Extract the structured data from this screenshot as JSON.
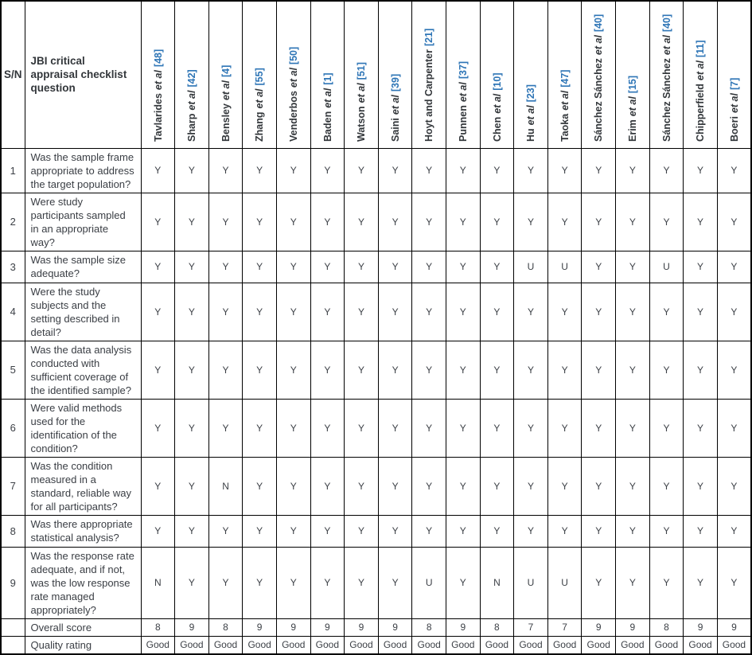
{
  "table": {
    "corner": {
      "sn_label": "S/N",
      "question_label": "JBI critical appraisal checklist question"
    },
    "colors": {
      "citation_blue": "#2e75b6",
      "border_black": "#000000",
      "text_dark": "#33373b"
    },
    "studies": [
      {
        "name": "Tavlarides",
        "etal": "et al",
        "cite": "[48]"
      },
      {
        "name": "Sharp",
        "etal": "et al",
        "cite": "[42]"
      },
      {
        "name": "Bensley",
        "etal": "et al",
        "cite": "[4]"
      },
      {
        "name": "Zhang",
        "etal": "et al",
        "cite": "[55]"
      },
      {
        "name": "Venderbos",
        "etal": "et al",
        "cite": "[50]"
      },
      {
        "name": "Baden",
        "etal": "et al",
        "cite": "[1]"
      },
      {
        "name": "Watson",
        "etal": "et al",
        "cite": "[51]"
      },
      {
        "name": "Saini",
        "etal": "et al",
        "cite": "[39]"
      },
      {
        "name": "Hoyt and Carpenter",
        "etal": "",
        "cite": "[21]"
      },
      {
        "name": "Punnen",
        "etal": "et al",
        "cite": "[37]"
      },
      {
        "name": "Chen",
        "etal": "et al",
        "cite": "[10]"
      },
      {
        "name": "Hu",
        "etal": "et al",
        "cite": "[23]"
      },
      {
        "name": "Taoka",
        "etal": "et al",
        "cite": "[47]"
      },
      {
        "name": "Sánchez Sánchez",
        "etal": "et al",
        "cite": "[40]"
      },
      {
        "name": "Erim",
        "etal": "et al",
        "cite": "[15]"
      },
      {
        "name": "Sánchez Sánchez",
        "etal": "et al",
        "cite": "[40]"
      },
      {
        "name": "Chipperfield",
        "etal": "et al",
        "cite": "[11]"
      },
      {
        "name": "Boeri",
        "etal": "et al",
        "cite": "[7]"
      }
    ],
    "rows": [
      {
        "sn": "1",
        "question": "Was the sample frame appropriate to address the target population?",
        "values": [
          "Y",
          "Y",
          "Y",
          "Y",
          "Y",
          "Y",
          "Y",
          "Y",
          "Y",
          "Y",
          "Y",
          "Y",
          "Y",
          "Y",
          "Y",
          "Y",
          "Y",
          "Y"
        ]
      },
      {
        "sn": "2",
        "question": "Were study participants sampled in an appropriate way?",
        "values": [
          "Y",
          "Y",
          "Y",
          "Y",
          "Y",
          "Y",
          "Y",
          "Y",
          "Y",
          "Y",
          "Y",
          "Y",
          "Y",
          "Y",
          "Y",
          "Y",
          "Y",
          "Y"
        ]
      },
      {
        "sn": "3",
        "question": "Was the sample size adequate?",
        "values": [
          "Y",
          "Y",
          "Y",
          "Y",
          "Y",
          "Y",
          "Y",
          "Y",
          "Y",
          "Y",
          "Y",
          "U",
          "U",
          "Y",
          "Y",
          "U",
          "Y",
          "Y"
        ]
      },
      {
        "sn": "4",
        "question": "Were the study subjects and the setting described in detail?",
        "values": [
          "Y",
          "Y",
          "Y",
          "Y",
          "Y",
          "Y",
          "Y",
          "Y",
          "Y",
          "Y",
          "Y",
          "Y",
          "Y",
          "Y",
          "Y",
          "Y",
          "Y",
          "Y"
        ]
      },
      {
        "sn": "5",
        "question": "Was the data analysis conducted with sufficient coverage of the identified sample?",
        "values": [
          "Y",
          "Y",
          "Y",
          "Y",
          "Y",
          "Y",
          "Y",
          "Y",
          "Y",
          "Y",
          "Y",
          "Y",
          "Y",
          "Y",
          "Y",
          "Y",
          "Y",
          "Y"
        ]
      },
      {
        "sn": "6",
        "question": "Were valid methods used for the identification of the condition?",
        "values": [
          "Y",
          "Y",
          "Y",
          "Y",
          "Y",
          "Y",
          "Y",
          "Y",
          "Y",
          "Y",
          "Y",
          "Y",
          "Y",
          "Y",
          "Y",
          "Y",
          "Y",
          "Y"
        ]
      },
      {
        "sn": "7",
        "question": "Was the condition measured in a standard, reliable way for all participants?",
        "values": [
          "Y",
          "Y",
          "N",
          "Y",
          "Y",
          "Y",
          "Y",
          "Y",
          "Y",
          "Y",
          "Y",
          "Y",
          "Y",
          "Y",
          "Y",
          "Y",
          "Y",
          "Y"
        ]
      },
      {
        "sn": "8",
        "question": "Was there appropriate statistical analysis?",
        "values": [
          "Y",
          "Y",
          "Y",
          "Y",
          "Y",
          "Y",
          "Y",
          "Y",
          "Y",
          "Y",
          "Y",
          "Y",
          "Y",
          "Y",
          "Y",
          "Y",
          "Y",
          "Y"
        ]
      },
      {
        "sn": "9",
        "question": "Was the response rate adequate, and if not, was the low response rate managed appropriately?",
        "values": [
          "N",
          "Y",
          "Y",
          "Y",
          "Y",
          "Y",
          "Y",
          "Y",
          "U",
          "Y",
          "N",
          "U",
          "U",
          "Y",
          "Y",
          "Y",
          "Y",
          "Y"
        ]
      }
    ],
    "summary": [
      {
        "label": "Overall score",
        "values": [
          "8",
          "9",
          "8",
          "9",
          "9",
          "9",
          "9",
          "9",
          "8",
          "9",
          "8",
          "7",
          "7",
          "9",
          "9",
          "8",
          "9",
          "9"
        ]
      },
      {
        "label": "Quality rating",
        "values": [
          "Good",
          "Good",
          "Good",
          "Good",
          "Good",
          "Good",
          "Good",
          "Good",
          "Good",
          "Good",
          "Good",
          "Good",
          "Good",
          "Good",
          "Good",
          "Good",
          "Good",
          "Good"
        ]
      }
    ]
  }
}
